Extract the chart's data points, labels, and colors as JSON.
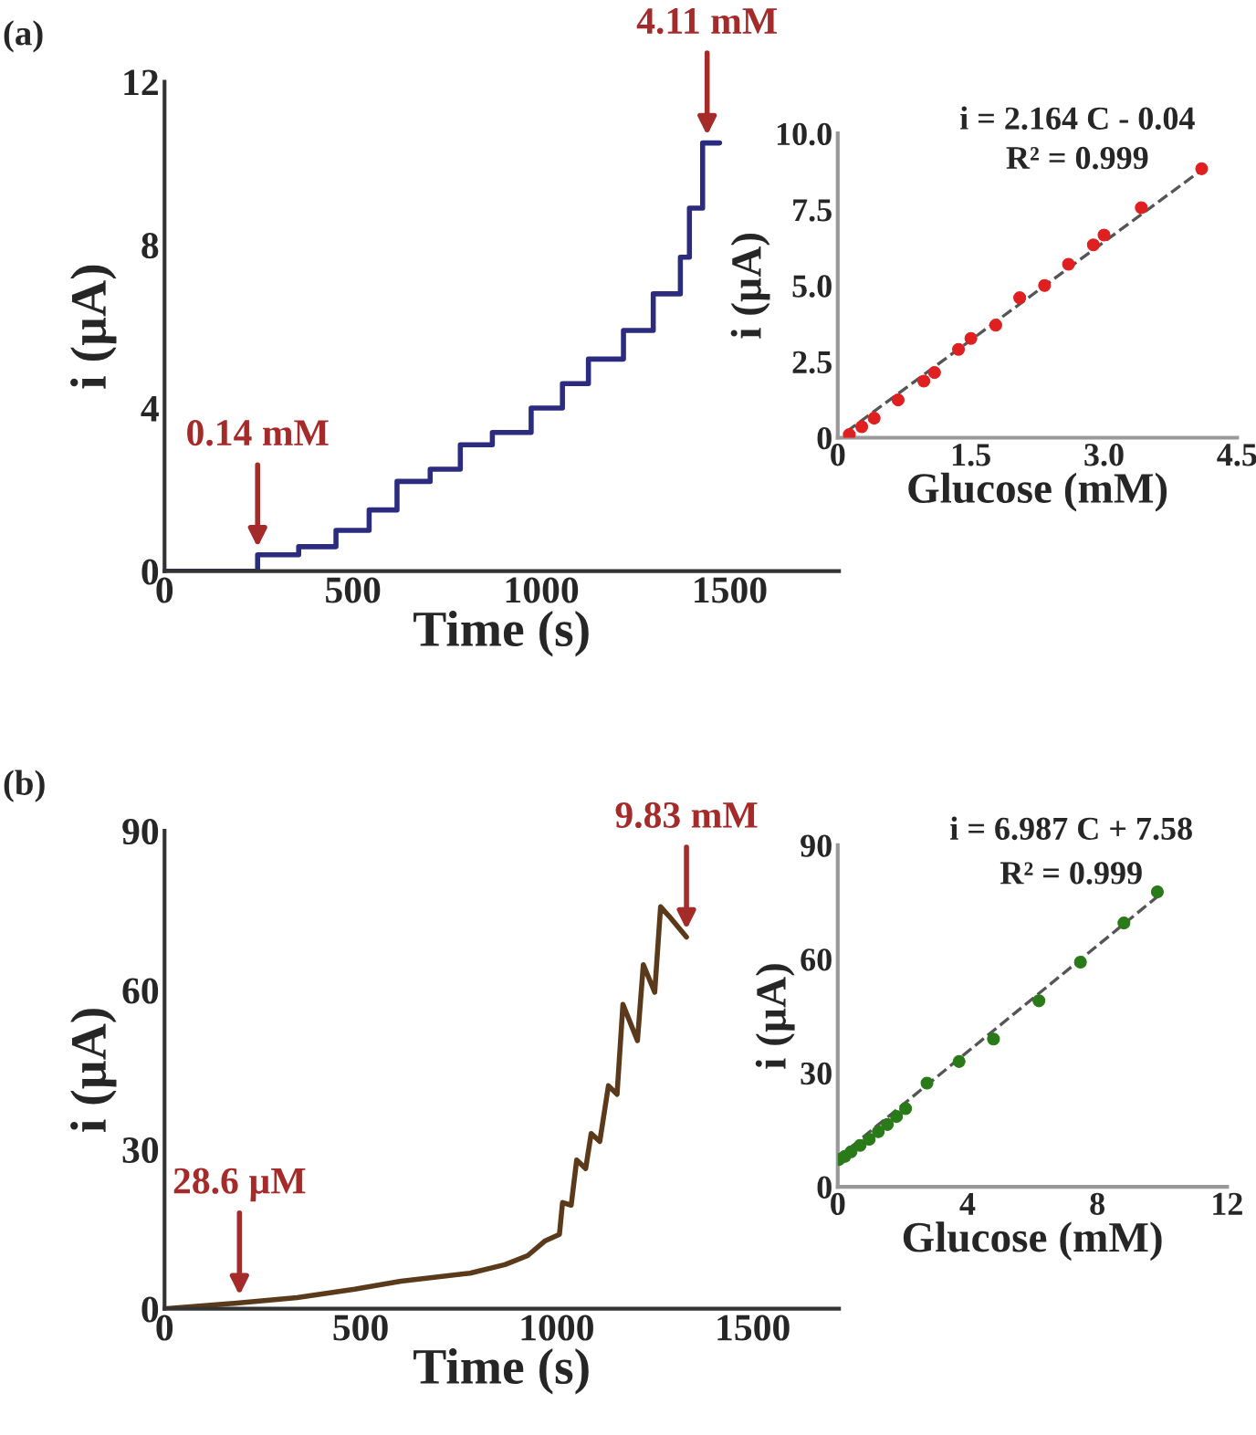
{
  "chart_data": [
    {
      "type": "step",
      "title": "(a)",
      "xlabel": "Time (s)",
      "ylabel": "i (µA)",
      "color": "#2b2b80",
      "x": [
        0,
        247,
        356,
        455,
        543,
        617,
        705,
        785,
        870,
        973,
        1056,
        1125,
        1218,
        1297,
        1369,
        1393,
        1428,
        1473
      ],
      "values": [
        0,
        0.4,
        0.6,
        1.0,
        1.5,
        2.2,
        2.5,
        3.1,
        3.4,
        4.0,
        4.6,
        5.2,
        5.9,
        6.8,
        7.7,
        8.9,
        10.5,
        10.5
      ],
      "xlim": [
        0,
        1790
      ],
      "ylim": [
        0,
        12
      ],
      "xticks": [
        0,
        500,
        1000,
        1500
      ],
      "yticks": [
        0,
        4,
        8,
        12
      ],
      "annotations": [
        {
          "text": "0.14 mM",
          "x": 247,
          "y": 0.4
        },
        {
          "text": "4.11 mM",
          "x": 1440,
          "y": 10.5
        }
      ]
    },
    {
      "type": "scatter",
      "xlabel": "Glucose (mM)",
      "ylabel": "i (µA)",
      "marker": "circle",
      "series": [
        {
          "color": "#e02020",
          "x": [
            0.13,
            0.27,
            0.41,
            0.68,
            0.97,
            1.09,
            1.36,
            1.5,
            1.78,
            2.05,
            2.33,
            2.6,
            2.88,
            3.0,
            3.42,
            4.1
          ],
          "values": [
            0.1,
            0.36,
            0.64,
            1.24,
            1.86,
            2.14,
            2.9,
            3.26,
            3.7,
            4.6,
            5.0,
            5.7,
            6.34,
            6.66,
            7.56,
            8.84
          ]
        },
        {
          "type": "line",
          "marker": "none",
          "line_style": "dashed",
          "color": "#555555",
          "x": [
            0.1,
            4.1
          ],
          "values": [
            0.2,
            8.8
          ]
        }
      ],
      "xlim": [
        0,
        4.5
      ],
      "ylim": [
        0,
        10
      ],
      "xticks": [
        0,
        1.5,
        {
          "value": 3,
          "label": "3.0"
        },
        4.5
      ],
      "yticks": [
        0,
        2.5,
        {
          "value": 5,
          "label": "5.0"
        },
        7.5,
        {
          "value": 10,
          "label": "10.0"
        }
      ],
      "annotations": [
        "i = 2.164 C - 0.04",
        "R² = 0.999"
      ]
    },
    {
      "type": "line",
      "title": "(b)",
      "xlabel": "Time (s)",
      "ylabel": "i (µA)",
      "color": "#5a3a1a",
      "x": [
        0,
        191,
        338,
        485,
        603,
        779,
        868,
        926,
        971,
        1007,
        1015,
        1037,
        1051,
        1074,
        1088,
        1110,
        1132,
        1154,
        1169,
        1206,
        1221,
        1250,
        1265,
        1287,
        1331
      ],
      "values": [
        0,
        1.1,
        2.1,
        3.7,
        5.2,
        6.7,
        8.3,
        10,
        12.8,
        14,
        20,
        19.5,
        28,
        26.4,
        33,
        31.5,
        42,
        40.4,
        57.3,
        50.5,
        64.8,
        59.6,
        75.7,
        73.9,
        70
      ],
      "xlim": [
        0,
        1720
      ],
      "ylim": [
        0,
        90
      ],
      "xticks": [
        0,
        500,
        1000,
        1500
      ],
      "yticks": [
        0,
        30,
        60,
        90
      ],
      "annotations": [
        {
          "text": "28.6 µM",
          "x": 191,
          "y": 1.1
        },
        {
          "text": "9.83 mM",
          "x": 1331,
          "y": 70
        }
      ]
    },
    {
      "type": "scatter",
      "xlabel": "Glucose (mM)",
      "ylabel": "i (µA)",
      "marker": "circle",
      "series": [
        {
          "color": "#2a7a1a",
          "x": [
            0.04,
            0.22,
            0.41,
            0.69,
            0.97,
            1.25,
            1.53,
            1.81,
            2.09,
            2.75,
            3.74,
            4.8,
            6.2,
            7.48,
            8.82,
            9.85
          ],
          "values": [
            7.2,
            8.0,
            9.2,
            10.9,
            12.5,
            14.5,
            16.4,
            18.5,
            20.6,
            27.3,
            33,
            38.9,
            49,
            59.2,
            69.5,
            77.7
          ]
        },
        {
          "type": "line",
          "marker": "none",
          "line_style": "dashed",
          "color": "#555555",
          "x": [
            0,
            10
          ],
          "values": [
            7.6,
            77.5
          ]
        }
      ],
      "xlim": [
        0,
        12
      ],
      "ylim": [
        0,
        90
      ],
      "xticks": [
        0,
        4,
        8,
        12
      ],
      "yticks": [
        0,
        30,
        60,
        90
      ],
      "annotations": [
        "i = 6.987 C + 7.58",
        "R² = 0.999"
      ]
    }
  ]
}
